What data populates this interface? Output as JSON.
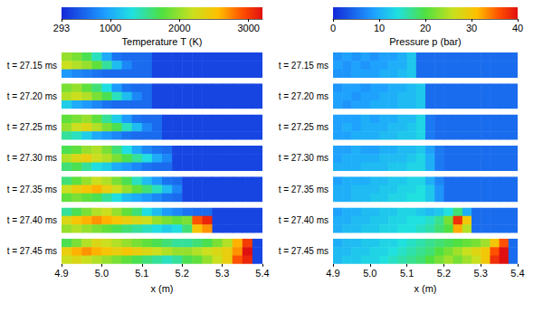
{
  "chart_data": [
    {
      "type": "heatmap",
      "title": "Temperature T (K)",
      "xlabel": "x (m)",
      "xlim": [
        4.9,
        5.4
      ],
      "xticks": [
        4.9,
        {
          "value": 5,
          "label": "5.0"
        },
        5.1,
        5.2,
        5.3,
        5.4
      ],
      "tick_labels": "x",
      "x_edges": [
        4.9,
        4.925,
        4.95,
        4.975,
        5,
        5.025,
        5.05,
        5.075,
        5.1,
        5.125,
        5.15,
        5.175,
        5.2,
        5.225,
        5.25,
        5.275,
        5.3,
        5.325,
        5.35,
        5.375,
        5.4
      ],
      "colorbar": {
        "range": [
          293,
          3200
        ],
        "ticks": [
          293,
          1000,
          2000,
          3000
        ]
      },
      "panels": [
        {
          "label": "t = 27.15 ms",
          "cells": [
            [
              2000,
              1900,
              1700,
              1400,
              1000,
              700,
              650,
              650,
              650,
              450,
              450,
              450,
              450,
              450,
              450,
              450,
              450,
              450,
              450,
              450
            ],
            [
              2200,
              2100,
              2000,
              1800,
              1500,
              1100,
              800,
              650,
              650,
              450,
              450,
              450,
              450,
              450,
              450,
              450,
              450,
              450,
              450,
              450
            ],
            [
              900,
              800,
              750,
              700,
              650,
              650,
              650,
              650,
              650,
              450,
              450,
              450,
              450,
              450,
              450,
              450,
              450,
              450,
              450,
              450
            ]
          ]
        },
        {
          "label": "t = 27.20 ms",
          "cells": [
            [
              1900,
              2000,
              1800,
              1600,
              1300,
              900,
              700,
              650,
              650,
              450,
              450,
              450,
              450,
              450,
              450,
              450,
              450,
              450,
              450,
              450
            ],
            [
              2100,
              2200,
              2100,
              1900,
              1700,
              1400,
              1100,
              800,
              650,
              450,
              450,
              450,
              450,
              450,
              450,
              450,
              450,
              450,
              450,
              450
            ],
            [
              1200,
              1000,
              900,
              800,
              700,
              650,
              650,
              650,
              650,
              450,
              450,
              450,
              450,
              450,
              450,
              450,
              450,
              450,
              450,
              450
            ]
          ]
        },
        {
          "label": "t = 27.25 ms",
          "cells": [
            [
              1800,
              1900,
              2000,
              1800,
              1500,
              1200,
              900,
              700,
              650,
              650,
              450,
              450,
              450,
              450,
              450,
              450,
              450,
              450,
              450,
              450
            ],
            [
              2000,
              2200,
              2300,
              2100,
              1900,
              1700,
              1400,
              1100,
              800,
              650,
              450,
              450,
              450,
              450,
              450,
              450,
              450,
              450,
              450,
              450
            ],
            [
              1500,
              1400,
              1200,
              1000,
              900,
              800,
              700,
              650,
              650,
              650,
              450,
              450,
              450,
              450,
              450,
              450,
              450,
              450,
              450,
              450
            ]
          ]
        },
        {
          "label": "t = 27.30 ms",
          "cells": [
            [
              1700,
              1800,
              2000,
              2100,
              1900,
              1600,
              1300,
              1000,
              800,
              700,
              650,
              450,
              450,
              450,
              450,
              450,
              450,
              450,
              450,
              450
            ],
            [
              2100,
              2300,
              2400,
              2200,
              2100,
              1900,
              1700,
              1500,
              1300,
              1000,
              800,
              450,
              450,
              450,
              450,
              450,
              450,
              450,
              450,
              450
            ],
            [
              1600,
              1700,
              1500,
              1300,
              1200,
              1000,
              900,
              800,
              700,
              650,
              650,
              450,
              450,
              450,
              450,
              450,
              450,
              450,
              450,
              450
            ]
          ]
        },
        {
          "label": "t = 27.35 ms",
          "cells": [
            [
              1600,
              1800,
              2000,
              2200,
              2100,
              1900,
              1700,
              1400,
              1100,
              900,
              700,
              650,
              450,
              450,
              450,
              450,
              450,
              450,
              450,
              450
            ],
            [
              2200,
              2400,
              2500,
              2600,
              2400,
              2200,
              2000,
              1800,
              1600,
              1400,
              1100,
              800,
              450,
              450,
              450,
              450,
              450,
              450,
              450,
              450
            ],
            [
              1800,
              1900,
              1800,
              1700,
              1500,
              1300,
              1100,
              1000,
              900,
              800,
              700,
              650,
              450,
              450,
              450,
              450,
              450,
              450,
              450,
              450
            ]
          ]
        },
        {
          "label": "t = 27.40 ms",
          "cells": [
            [
              1500,
              1700,
              1900,
              2100,
              2200,
              2000,
              1800,
              1600,
              1300,
              1100,
              900,
              800,
              700,
              650,
              650,
              450,
              450,
              450,
              450,
              450
            ],
            [
              2300,
              2500,
              2600,
              2700,
              2600,
              2500,
              2400,
              2300,
              2200,
              2000,
              1900,
              1800,
              1900,
              2900,
              3100,
              450,
              450,
              450,
              450,
              450
            ],
            [
              2000,
              2100,
              2000,
              1900,
              1800,
              1700,
              1600,
              1500,
              1400,
              1300,
              1200,
              1300,
              1600,
              2500,
              2700,
              450,
              450,
              450,
              450,
              450
            ]
          ]
        },
        {
          "label": "t = 27.45 ms",
          "cells": [
            [
              1700,
              1900,
              2100,
              2300,
              2200,
              2100,
              2000,
              1900,
              1800,
              1700,
              1600,
              1500,
              1500,
              1600,
              1700,
              1900,
              2100,
              2600,
              3000,
              450
            ],
            [
              2400,
              2600,
              2700,
              2600,
              2500,
              2400,
              2500,
              2400,
              2300,
              2200,
              2100,
              2000,
              2000,
              2100,
              2200,
              2300,
              2400,
              2700,
              3200,
              450
            ],
            [
              2200,
              2300,
              2200,
              2100,
              2000,
              1900,
              1800,
              1700,
              1600,
              1500,
              1400,
              1500,
              1700,
              1800,
              2000,
              2200,
              2400,
              2900,
              3100,
              450
            ]
          ]
        }
      ]
    },
    {
      "type": "heatmap",
      "title": "Pressure p (bar)",
      "xlabel": "x (m)",
      "xlim": [
        4.9,
        5.4
      ],
      "xticks": [
        4.9,
        {
          "value": 5,
          "label": "5.0"
        },
        5.1,
        5.2,
        5.3,
        5.4
      ],
      "tick_labels": "x",
      "x_edges": [
        4.9,
        4.925,
        4.95,
        4.975,
        5,
        5.025,
        5.05,
        5.075,
        5.1,
        5.125,
        5.15,
        5.175,
        5.2,
        5.225,
        5.25,
        5.275,
        5.3,
        5.325,
        5.35,
        5.375,
        5.4
      ],
      "colorbar": {
        "range": [
          0,
          40
        ],
        "ticks": [
          0,
          10,
          20,
          30,
          40
        ]
      },
      "panels": [
        {
          "label": "t = 27.15 ms",
          "cells": [
            [
              8,
              9,
              8,
              9,
              8,
              9,
              9,
              10,
              12,
              5,
              5,
              5,
              5,
              5,
              5,
              5,
              5,
              5,
              5,
              5
            ],
            [
              9,
              8,
              9,
              8,
              9,
              9,
              10,
              10,
              12,
              5,
              5,
              5,
              5,
              5,
              5,
              5,
              5,
              5,
              5,
              5
            ],
            [
              8,
              8,
              9,
              9,
              9,
              10,
              10,
              11,
              12,
              5,
              5,
              5,
              5,
              5,
              5,
              5,
              5,
              5,
              5,
              5
            ]
          ]
        },
        {
          "label": "t = 27.20 ms",
          "cells": [
            [
              8,
              9,
              9,
              8,
              9,
              9,
              10,
              10,
              11,
              12,
              5,
              5,
              5,
              5,
              5,
              5,
              5,
              5,
              5,
              5
            ],
            [
              9,
              9,
              8,
              9,
              9,
              10,
              10,
              11,
              11,
              12,
              5,
              5,
              5,
              5,
              5,
              5,
              5,
              5,
              5,
              5
            ],
            [
              9,
              8,
              9,
              9,
              10,
              10,
              10,
              11,
              11,
              12,
              5,
              5,
              5,
              5,
              5,
              5,
              5,
              5,
              5,
              5
            ]
          ]
        },
        {
          "label": "t = 27.25 ms",
          "cells": [
            [
              9,
              9,
              9,
              10,
              9,
              10,
              10,
              11,
              11,
              13,
              6,
              5,
              5,
              5,
              5,
              5,
              5,
              5,
              5,
              5
            ],
            [
              9,
              10,
              9,
              10,
              10,
              10,
              11,
              11,
              12,
              13,
              6,
              5,
              5,
              5,
              5,
              5,
              5,
              5,
              5,
              5
            ],
            [
              9,
              9,
              10,
              10,
              10,
              11,
              11,
              12,
              12,
              13,
              6,
              5,
              5,
              5,
              5,
              5,
              5,
              5,
              5,
              5
            ]
          ]
        },
        {
          "label": "t = 27.30 ms",
          "cells": [
            [
              9,
              9,
              10,
              9,
              9,
              10,
              10,
              11,
              11,
              12,
              9,
              6,
              5,
              5,
              5,
              5,
              5,
              5,
              5,
              5
            ],
            [
              9,
              10,
              10,
              10,
              10,
              11,
              11,
              11,
              12,
              13,
              10,
              6,
              5,
              5,
              5,
              5,
              5,
              5,
              5,
              5
            ],
            [
              10,
              10,
              10,
              11,
              11,
              11,
              12,
              12,
              13,
              13,
              10,
              6,
              5,
              5,
              5,
              5,
              5,
              5,
              5,
              5
            ]
          ]
        },
        {
          "label": "t = 27.35 ms",
          "cells": [
            [
              9,
              10,
              10,
              10,
              11,
              11,
              12,
              12,
              13,
              13,
              10,
              7,
              5,
              5,
              5,
              5,
              5,
              5,
              5,
              5
            ],
            [
              10,
              10,
              11,
              11,
              11,
              12,
              12,
              13,
              13,
              14,
              12,
              8,
              5,
              5,
              5,
              5,
              5,
              5,
              5,
              5
            ],
            [
              10,
              10,
              11,
              11,
              12,
              12,
              13,
              13,
              14,
              14,
              12,
              8,
              5,
              5,
              5,
              5,
              5,
              5,
              5,
              5
            ]
          ]
        },
        {
          "label": "t = 27.40 ms",
          "cells": [
            [
              9,
              10,
              10,
              11,
              11,
              12,
              12,
              13,
              13,
              12,
              11,
              12,
              14,
              18,
              10,
              5,
              5,
              5,
              5,
              5
            ],
            [
              10,
              10,
              11,
              11,
              12,
              12,
              13,
              13,
              14,
              14,
              15,
              17,
              22,
              38,
              30,
              5,
              5,
              5,
              5,
              5
            ],
            [
              10,
              11,
              11,
              12,
              12,
              13,
              13,
              14,
              14,
              15,
              16,
              18,
              20,
              32,
              25,
              5,
              5,
              5,
              5,
              5
            ]
          ]
        },
        {
          "label": "t = 27.45 ms",
          "cells": [
            [
              10,
              11,
              11,
              12,
              12,
              13,
              13,
              14,
              15,
              16,
              17,
              18,
              19,
              20,
              21,
              22,
              24,
              30,
              36,
              5
            ],
            [
              11,
              11,
              12,
              12,
              13,
              13,
              14,
              15,
              16,
              17,
              18,
              20,
              22,
              24,
              26,
              28,
              30,
              36,
              40,
              5
            ],
            [
              11,
              12,
              12,
              13,
              13,
              14,
              15,
              16,
              17,
              18,
              20,
              22,
              24,
              22,
              24,
              26,
              30,
              38,
              40,
              5
            ]
          ]
        }
      ]
    }
  ]
}
